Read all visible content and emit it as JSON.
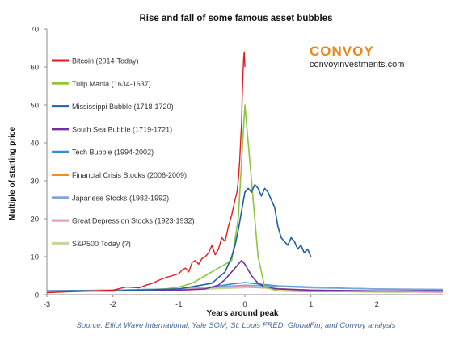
{
  "chart_data": {
    "type": "line",
    "title": "Rise and fall of some famous asset bubbles",
    "xlabel": "Years around peak",
    "ylabel": "Multiple of starting price",
    "xlim": [
      -3,
      3
    ],
    "ylim": [
      0,
      70
    ],
    "x_ticks": [
      -3,
      -2,
      -1,
      0,
      1,
      2
    ],
    "y_ticks": [
      0,
      10,
      20,
      30,
      40,
      50,
      60,
      70
    ],
    "grid": false,
    "legend_position": "left",
    "source": "Source: Elliot Wave International, Yale SOM, St. Louis FRED, GlobalFin, and Convoy analysis",
    "brand": {
      "name": "CONVOY",
      "url": "convoyinvestments.com",
      "name_color": "#e8891a",
      "url_color": "#222222"
    },
    "series": [
      {
        "name": "Bitcoin (2014-Today)",
        "color": "#e31b23",
        "x": [
          -3,
          -2.6,
          -2.3,
          -2,
          -1.8,
          -1.6,
          -1.5,
          -1.4,
          -1.3,
          -1.2,
          -1.1,
          -1.0,
          -0.95,
          -0.9,
          -0.85,
          -0.8,
          -0.75,
          -0.7,
          -0.65,
          -0.6,
          -0.55,
          -0.5,
          -0.45,
          -0.4,
          -0.35,
          -0.3,
          -0.25,
          -0.2,
          -0.15,
          -0.12,
          -0.1,
          -0.08,
          -0.06,
          -0.05,
          -0.04,
          -0.03,
          -0.02,
          -0.01,
          0
        ],
        "y": [
          0.5,
          0.8,
          1.0,
          1.2,
          2.0,
          1.8,
          2.5,
          3.0,
          3.8,
          4.5,
          5.0,
          5.5,
          6.5,
          7.0,
          6.0,
          8.5,
          9.0,
          8.0,
          9.5,
          10.0,
          11.0,
          13.0,
          10.5,
          12.0,
          15.0,
          14.0,
          18.0,
          21.0,
          25.0,
          27.0,
          30.0,
          35.0,
          42.0,
          45.0,
          52.0,
          58.0,
          62.0,
          64.0,
          60.0
        ]
      },
      {
        "name": "Tulip Mania (1634-1637)",
        "color": "#8dc63f",
        "x": [
          -3,
          -2.5,
          -2,
          -1.5,
          -1.2,
          -1.0,
          -0.8,
          -0.6,
          -0.5,
          -0.4,
          -0.3,
          -0.2,
          -0.1,
          0,
          0.1,
          0.2,
          0.3,
          0.5,
          1.0,
          1.5,
          2,
          2.5
        ],
        "y": [
          1.0,
          1.0,
          1.1,
          1.2,
          1.5,
          2.0,
          3.0,
          5.0,
          6.0,
          7.0,
          8.0,
          9.0,
          20.0,
          50.0,
          30.0,
          10.0,
          2.0,
          1.0,
          0.8,
          0.8,
          0.7,
          0.7
        ]
      },
      {
        "name": "Mississippi Bubble (1718-1720)",
        "color": "#1f5fa8",
        "x": [
          -3,
          -2,
          -1,
          -0.5,
          -0.3,
          -0.2,
          -0.15,
          -0.1,
          -0.05,
          0,
          0.05,
          0.1,
          0.15,
          0.2,
          0.25,
          0.3,
          0.35,
          0.4,
          0.45,
          0.5,
          0.55,
          0.6,
          0.65,
          0.7,
          0.75,
          0.8,
          0.85,
          0.9,
          0.95,
          1.0
        ],
        "y": [
          1.0,
          1.0,
          1.5,
          3.0,
          6.0,
          10.0,
          13.0,
          17.0,
          22.0,
          27.0,
          28.0,
          27.0,
          29.0,
          28.0,
          26.0,
          28.0,
          27.0,
          25.0,
          23.0,
          18.0,
          15.0,
          14.0,
          13.0,
          15.0,
          14.0,
          12.0,
          13.0,
          11.0,
          12.0,
          10.0
        ]
      },
      {
        "name": "South Sea Bubble (1719-1721)",
        "color": "#7030a0",
        "x": [
          -3,
          -2,
          -1,
          -0.6,
          -0.4,
          -0.3,
          -0.2,
          -0.1,
          -0.05,
          0,
          0.1,
          0.2,
          0.3,
          0.5,
          1.0,
          2.0,
          3
        ],
        "y": [
          1.0,
          1.0,
          1.2,
          1.5,
          2.5,
          4.0,
          6.0,
          8.0,
          9.0,
          8.0,
          5.0,
          3.0,
          2.0,
          1.5,
          1.2,
          1.0,
          1.0
        ]
      },
      {
        "name": "Tech Bubble (1994-2002)",
        "color": "#3a8fc8",
        "x": [
          -3,
          -2,
          -1,
          -0.5,
          -0.2,
          0,
          0.2,
          0.5,
          1.0,
          1.5,
          2,
          3
        ],
        "y": [
          0.8,
          1.0,
          1.5,
          2.0,
          2.8,
          3.2,
          2.8,
          2.3,
          2.0,
          1.7,
          1.5,
          1.3
        ]
      },
      {
        "name": "Financial Crisis Stocks (2006-2009)",
        "color": "#f28c28",
        "x": [
          -3,
          -2,
          -1,
          -0.5,
          0,
          0.5,
          1.0,
          1.5,
          2,
          3
        ],
        "y": [
          1.0,
          1.2,
          1.5,
          1.8,
          2.0,
          1.6,
          1.2,
          1.0,
          0.9,
          0.9
        ]
      },
      {
        "name": "Japanese Stocks (1982-1992)",
        "color": "#7da7d9",
        "x": [
          -3,
          -2,
          -1,
          -0.5,
          0,
          0.5,
          1.0,
          2,
          3
        ],
        "y": [
          1.0,
          1.2,
          1.6,
          2.0,
          2.5,
          2.2,
          1.8,
          1.5,
          1.4
        ]
      },
      {
        "name": "Great Depression Stocks (1923-1932)",
        "color": "#e899b7",
        "x": [
          -3,
          -2,
          -1,
          -0.5,
          0,
          0.5,
          1.0,
          2,
          3
        ],
        "y": [
          0.8,
          1.0,
          1.5,
          1.8,
          2.2,
          1.5,
          1.0,
          0.8,
          0.6
        ]
      },
      {
        "name": "S&P500 Today (?)",
        "color": "#c3d69b",
        "x": [
          -3,
          -2,
          -1,
          -0.5,
          -0.2,
          0
        ],
        "y": [
          0.8,
          1.0,
          1.3,
          1.5,
          1.7,
          1.8
        ]
      }
    ]
  }
}
